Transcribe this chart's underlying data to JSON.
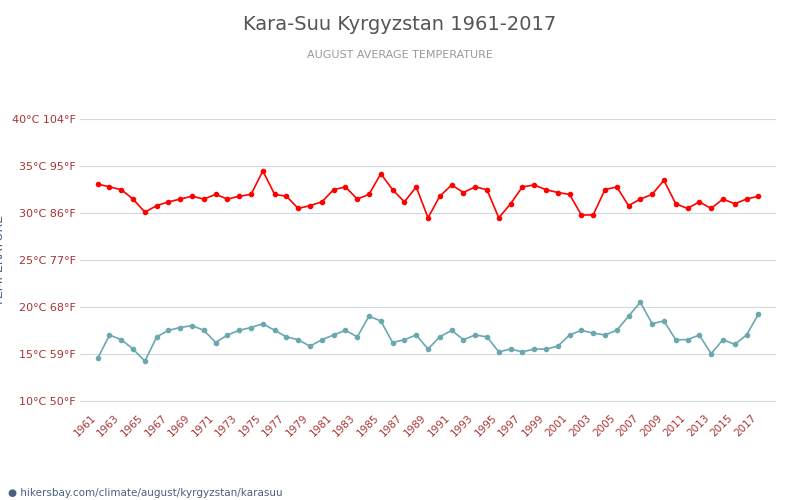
{
  "title": "Kara-Suu Kyrgyzstan 1961-2017",
  "subtitle": "AUGUST AVERAGE TEMPERATURE",
  "ylabel": "TEMPERATURE",
  "url_text": "hikersbay.com/climate/august/kyrgyzstan/karasuu",
  "years": [
    1961,
    1962,
    1963,
    1964,
    1965,
    1966,
    1967,
    1968,
    1969,
    1970,
    1971,
    1972,
    1973,
    1974,
    1975,
    1976,
    1977,
    1978,
    1979,
    1980,
    1981,
    1982,
    1983,
    1984,
    1985,
    1986,
    1987,
    1988,
    1989,
    1990,
    1991,
    1992,
    1993,
    1994,
    1995,
    1996,
    1997,
    1998,
    1999,
    2000,
    2001,
    2002,
    2003,
    2004,
    2005,
    2006,
    2007,
    2008,
    2009,
    2010,
    2011,
    2012,
    2013,
    2014,
    2015,
    2016,
    2017
  ],
  "day_temps": [
    33.1,
    32.8,
    32.5,
    31.5,
    30.1,
    30.8,
    31.2,
    31.5,
    31.8,
    31.5,
    32.0,
    31.5,
    31.8,
    32.0,
    34.5,
    32.0,
    31.8,
    30.5,
    30.8,
    31.2,
    32.5,
    32.8,
    31.5,
    32.0,
    34.2,
    32.5,
    31.2,
    32.8,
    29.5,
    31.8,
    33.0,
    32.2,
    32.8,
    32.5,
    29.5,
    31.0,
    32.8,
    33.0,
    32.5,
    32.2,
    32.0,
    29.8,
    29.8,
    32.5,
    32.8,
    30.8,
    31.5,
    32.0,
    33.5,
    31.0,
    30.5,
    31.2,
    30.5,
    31.5,
    31.0,
    31.5,
    31.8
  ],
  "night_temps": [
    14.5,
    17.0,
    16.5,
    15.5,
    14.2,
    16.8,
    17.5,
    17.8,
    18.0,
    17.5,
    16.2,
    17.0,
    17.5,
    17.8,
    18.2,
    17.5,
    16.8,
    16.5,
    15.8,
    16.5,
    17.0,
    17.5,
    16.8,
    19.0,
    18.5,
    16.2,
    16.5,
    17.0,
    15.5,
    16.8,
    17.5,
    16.5,
    17.0,
    16.8,
    15.2,
    15.5,
    15.2,
    15.5,
    15.5,
    15.8,
    17.0,
    17.5,
    17.2,
    17.0,
    17.5,
    19.0,
    20.5,
    18.2,
    18.5,
    16.5,
    16.5,
    17.0,
    15.0,
    16.5,
    16.0,
    17.0,
    19.2
  ],
  "yticks_celsius": [
    10,
    15,
    20,
    25,
    30,
    35,
    40
  ],
  "yticks_fahrenheit": [
    50,
    59,
    68,
    77,
    86,
    95,
    104
  ],
  "ylim": [
    9,
    41
  ],
  "day_color": "#ff0000",
  "night_color": "#6aa8b0",
  "background_color": "#ffffff",
  "grid_color": "#d0d8e0",
  "title_color": "#555555",
  "subtitle_color": "#999999",
  "ylabel_color": "#4a6080",
  "tick_color": "#aa3333",
  "url_color": "#4a6080",
  "legend_night_color": "#6aa8b0",
  "legend_day_color": "#ff0000",
  "marker_size": 3,
  "line_width": 1.2
}
